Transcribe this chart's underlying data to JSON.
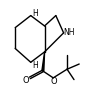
{
  "bg_color": "#ffffff",
  "line_color": "#000000",
  "lw": 1.0,
  "fs": 5.5,
  "figsize": [
    1.03,
    0.87
  ],
  "dpi": 100,
  "xlim": [
    0.0,
    1.0
  ],
  "ylim": [
    0.0,
    1.0
  ],
  "bonds": [],
  "labels": []
}
